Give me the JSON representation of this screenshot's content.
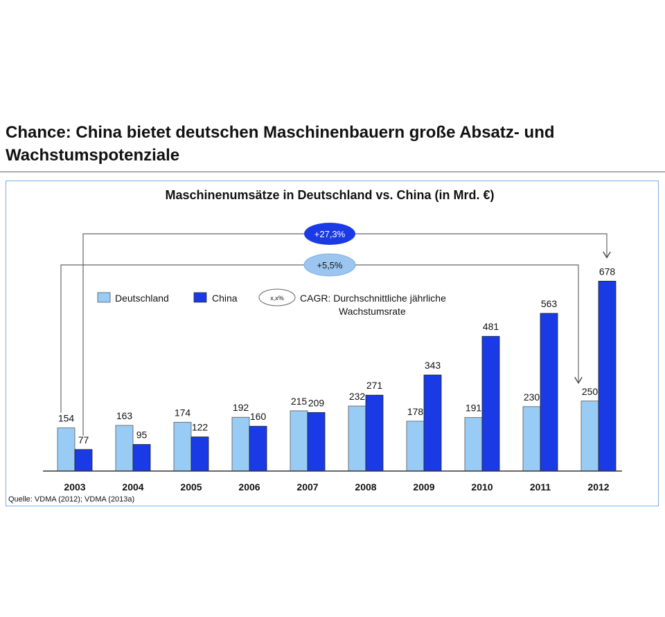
{
  "page": {
    "title": "Chance: China bietet deutschen Maschinenbauern große Absatz- und Wachstumspotenziale",
    "source": "Quelle: VDMA (2012); VDMA (2013a)"
  },
  "colors": {
    "deutschland": "#99ccf5",
    "china": "#1a3ae6",
    "frame": "#7aaee6",
    "axis": "#333333"
  },
  "chart_data": {
    "type": "bar",
    "title": "Maschinenumsätze in Deutschland vs. China (in Mrd. €)",
    "categories": [
      "2003",
      "2004",
      "2005",
      "2006",
      "2007",
      "2008",
      "2009",
      "2010",
      "2011",
      "2012"
    ],
    "series": [
      {
        "name": "Deutschland",
        "values": [
          154,
          163,
          174,
          192,
          215,
          232,
          178,
          191,
          230,
          250
        ]
      },
      {
        "name": "China",
        "values": [
          77,
          95,
          122,
          160,
          209,
          271,
          343,
          481,
          563,
          678
        ]
      }
    ],
    "ylim": [
      0,
      700
    ],
    "grid": false,
    "legend": {
      "position": "top-left",
      "deutschland": "Deutschland",
      "china": "China",
      "cagr_symbol": "x,x%",
      "cagr_text_line1": "CAGR: Durchschnittliche jährliche",
      "cagr_text_line2": "Wachstumsrate"
    },
    "annotations": [
      {
        "label": "+27,3%",
        "series": "China",
        "from": "2003",
        "to": "2012"
      },
      {
        "label": "+5,5%",
        "series": "Deutschland",
        "from": "2003",
        "to": "2012"
      }
    ]
  }
}
